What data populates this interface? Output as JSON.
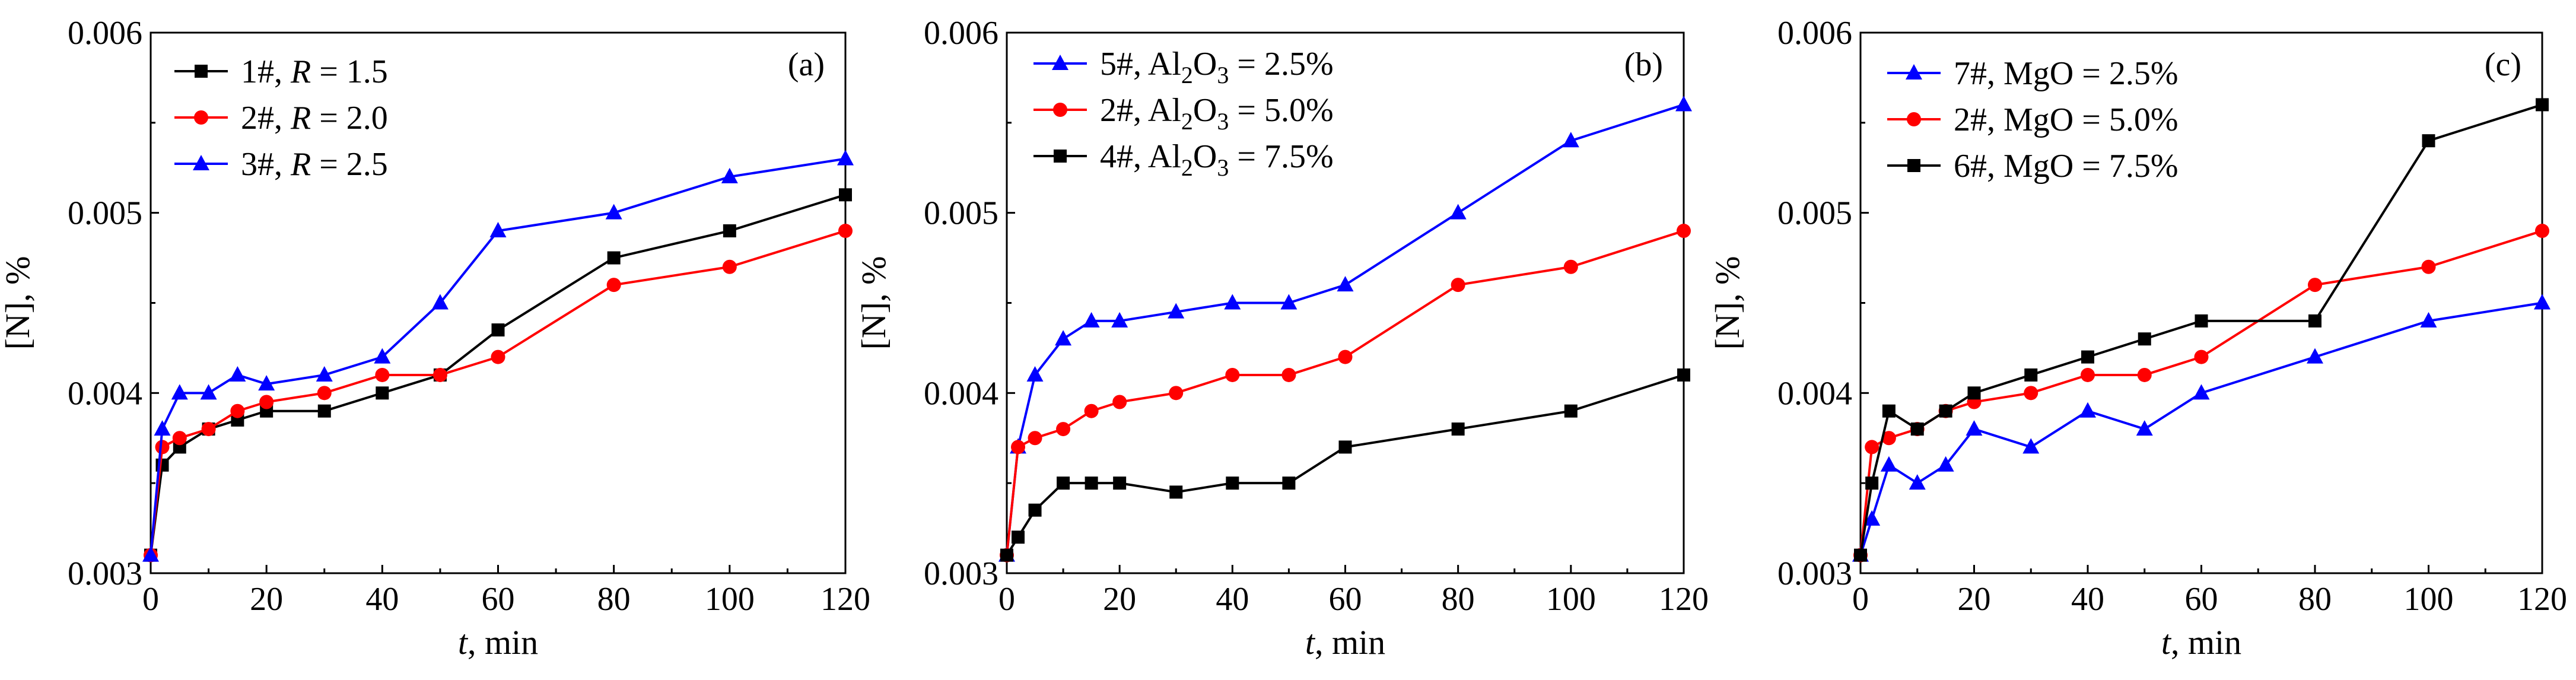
{
  "chart_data": [
    {
      "type": "line",
      "panel_label": "(a)",
      "xlabel_italic": "t",
      "xlabel_rest": ", min",
      "ylabel": "[N], %",
      "xlim": [
        0,
        120
      ],
      "ylim": [
        0.003,
        0.006
      ],
      "x_ticks": [
        0,
        20,
        40,
        60,
        80,
        100,
        120
      ],
      "x_tick_labels": [
        "0",
        "20",
        "40",
        "60",
        "80",
        "100",
        "120"
      ],
      "y_ticks": [
        0.003,
        0.004,
        0.005,
        0.006
      ],
      "y_tick_labels": [
        "0.003",
        "0.004",
        "0.005",
        "0.006"
      ],
      "legend_position": "top-left",
      "x": [
        0,
        2,
        5,
        10,
        15,
        20,
        30,
        40,
        50,
        60,
        80,
        100,
        120
      ],
      "series": [
        {
          "name": "1#, R = 1.5",
          "legend_prefix": "1#, ",
          "legend_italic": "R",
          "legend_suffix": " = 1.5",
          "color": "#000000",
          "marker": "square",
          "values": [
            0.0031,
            0.0036,
            0.0037,
            0.0038,
            0.00385,
            0.0039,
            0.0039,
            0.004,
            0.0041,
            0.00435,
            0.00475,
            0.0049,
            0.0051
          ]
        },
        {
          "name": "2#, R = 2.0",
          "legend_prefix": "2#, ",
          "legend_italic": "R",
          "legend_suffix": " = 2.0",
          "color": "#ff0000",
          "marker": "circle",
          "values": [
            0.0031,
            0.0037,
            0.00375,
            0.0038,
            0.0039,
            0.00395,
            0.004,
            0.0041,
            0.0041,
            0.0042,
            0.0046,
            0.0047,
            0.0049
          ]
        },
        {
          "name": "3#, R = 2.5",
          "legend_prefix": "3#, ",
          "legend_italic": "R",
          "legend_suffix": " = 2.5",
          "color": "#0000ff",
          "marker": "triangle",
          "values": [
            0.0031,
            0.0038,
            0.004,
            0.004,
            0.0041,
            0.00405,
            0.0041,
            0.0042,
            0.0045,
            0.0049,
            0.005,
            0.0052,
            0.0053
          ]
        }
      ]
    },
    {
      "type": "line",
      "panel_label": "(b)",
      "xlabel_italic": "t",
      "xlabel_rest": ", min",
      "ylabel": "[N], %",
      "xlim": [
        0,
        120
      ],
      "ylim": [
        0.003,
        0.006
      ],
      "x_ticks": [
        0,
        20,
        40,
        60,
        80,
        100,
        120
      ],
      "x_tick_labels": [
        "0",
        "20",
        "40",
        "60",
        "80",
        "100",
        "120"
      ],
      "y_ticks": [
        0.003,
        0.004,
        0.005,
        0.006
      ],
      "y_tick_labels": [
        "0.003",
        "0.004",
        "0.005",
        "0.006"
      ],
      "legend_position": "top-left",
      "x": [
        0,
        2,
        5,
        10,
        15,
        20,
        30,
        40,
        50,
        60,
        80,
        100,
        120
      ],
      "series": [
        {
          "name": "5#, Al2O3 = 2.5%",
          "legend_prefix": "5#, Al",
          "legend_sub1": "2",
          "legend_mid": "O",
          "legend_sub2": "3",
          "legend_suffix": " = 2.5%",
          "color": "#0000ff",
          "marker": "triangle",
          "values": [
            0.0031,
            0.0037,
            0.0041,
            0.0043,
            0.0044,
            0.0044,
            0.00445,
            0.0045,
            0.0045,
            0.0046,
            0.005,
            0.0054,
            0.0056
          ]
        },
        {
          "name": "2#, Al2O3 = 5.0%",
          "legend_prefix": "2#, Al",
          "legend_sub1": "2",
          "legend_mid": "O",
          "legend_sub2": "3",
          "legend_suffix": " = 5.0%",
          "color": "#ff0000",
          "marker": "circle",
          "values": [
            0.0031,
            0.0037,
            0.00375,
            0.0038,
            0.0039,
            0.00395,
            0.004,
            0.0041,
            0.0041,
            0.0042,
            0.0046,
            0.0047,
            0.0049
          ]
        },
        {
          "name": "4#, Al2O3 = 7.5%",
          "legend_prefix": "4#, Al",
          "legend_sub1": "2",
          "legend_mid": "O",
          "legend_sub2": "3",
          "legend_suffix": " = 7.5%",
          "color": "#000000",
          "marker": "square",
          "values": [
            0.0031,
            0.0032,
            0.00335,
            0.0035,
            0.0035,
            0.0035,
            0.00345,
            0.0035,
            0.0035,
            0.0037,
            0.0038,
            0.0039,
            0.0041
          ]
        }
      ]
    },
    {
      "type": "line",
      "panel_label": "(c)",
      "xlabel_italic": "t",
      "xlabel_rest": ", min",
      "ylabel": "[N], %",
      "xlim": [
        0,
        120
      ],
      "ylim": [
        0.003,
        0.006
      ],
      "x_ticks": [
        0,
        20,
        40,
        60,
        80,
        100,
        120
      ],
      "x_tick_labels": [
        "0",
        "20",
        "40",
        "60",
        "80",
        "100",
        "120"
      ],
      "y_ticks": [
        0.003,
        0.004,
        0.005,
        0.006
      ],
      "y_tick_labels": [
        "0.003",
        "0.004",
        "0.005",
        "0.006"
      ],
      "legend_position": "top-left",
      "x": [
        0,
        2,
        5,
        10,
        15,
        20,
        30,
        40,
        50,
        60,
        80,
        100,
        120
      ],
      "series": [
        {
          "name": "7#, MgO = 2.5%",
          "legend_prefix": "7#, MgO = 2.5%",
          "color": "#0000ff",
          "marker": "triangle",
          "values": [
            0.0031,
            0.0033,
            0.0036,
            0.0035,
            0.0036,
            0.0038,
            0.0037,
            0.0039,
            0.0038,
            0.004,
            0.0042,
            0.0044,
            0.0045
          ]
        },
        {
          "name": "2#, MgO = 5.0%",
          "legend_prefix": "2#, MgO = 5.0%",
          "color": "#ff0000",
          "marker": "circle",
          "values": [
            0.0031,
            0.0037,
            0.00375,
            0.0038,
            0.0039,
            0.00395,
            0.004,
            0.0041,
            0.0041,
            0.0042,
            0.0046,
            0.0047,
            0.0049
          ]
        },
        {
          "name": "6#, MgO = 7.5%",
          "legend_prefix": "6#, MgO = 7.5%",
          "color": "#000000",
          "marker": "square",
          "values": [
            0.0031,
            0.0035,
            0.0039,
            0.0038,
            0.0039,
            0.004,
            0.0041,
            0.0042,
            0.0043,
            0.0044,
            0.0044,
            0.0054,
            0.0056
          ]
        }
      ]
    }
  ]
}
